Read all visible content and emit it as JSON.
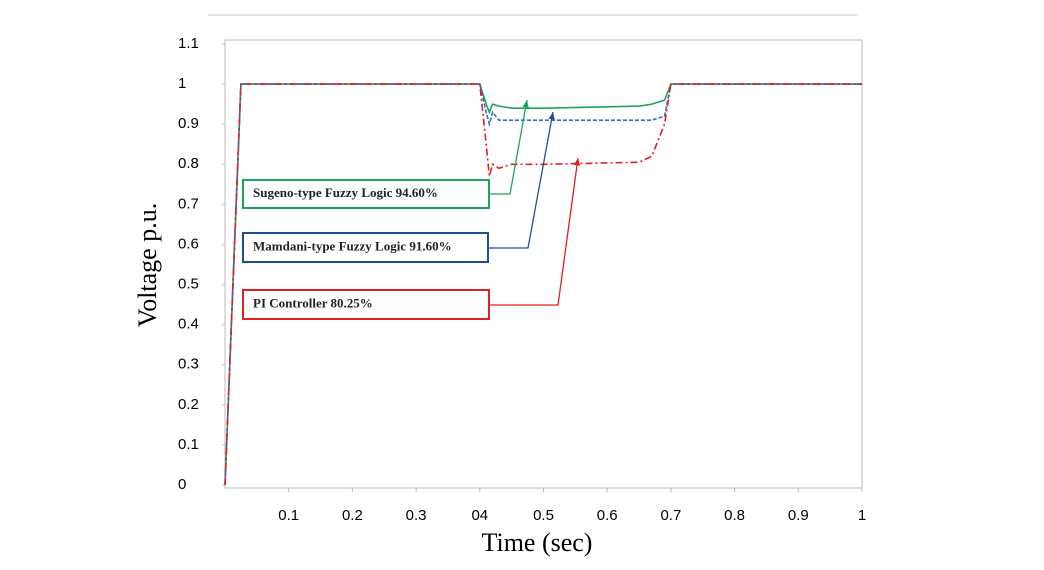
{
  "chart_data": {
    "type": "line",
    "x": [
      0,
      0.025,
      0.4,
      0.41,
      0.415,
      0.42,
      0.43,
      0.45,
      0.5,
      0.65,
      0.67,
      0.69,
      0.7,
      1
    ],
    "series": [
      {
        "color": "#1fa35a",
        "dash": "solid",
        "values": [
          0,
          1,
          1,
          0.95,
          0.93,
          0.95,
          0.945,
          0.94,
          0.94,
          0.945,
          0.95,
          0.96,
          1,
          1
        ]
      },
      {
        "color": "#2f6fc2",
        "dash": "dashed",
        "values": [
          0,
          1,
          1,
          0.93,
          0.9,
          0.93,
          0.91,
          0.91,
          0.91,
          0.91,
          0.91,
          0.92,
          1,
          1
        ]
      },
      {
        "color": "#e02020",
        "dash": "dashdot",
        "values": [
          0,
          1,
          1,
          0.85,
          0.77,
          0.8,
          0.79,
          0.8,
          0.8,
          0.805,
          0.82,
          0.9,
          1,
          1
        ]
      }
    ],
    "xlim": [
      0,
      1.0
    ],
    "ylim": [
      0,
      1.1
    ],
    "xticks": [
      0.1,
      0.2,
      0.3,
      {
        "value": 0.4,
        "label": "04"
      },
      0.5,
      0.6,
      0.7,
      0.8,
      0.9,
      1
    ],
    "yticks": [
      0,
      0.1,
      0.2,
      0.3,
      0.4,
      0.5,
      0.6,
      0.7,
      0.8,
      0.9,
      1,
      1.1
    ],
    "xlabel": "Time (sec)",
    "ylabel": "Voltage p.u.",
    "annotations": [
      {
        "text": "Sugeno-type Fuzzy Logic 94.60%",
        "color": "#1fa35a"
      },
      {
        "text": "Mamdani-type Fuzzy Logic 91.60%",
        "color": "#1f4f8f"
      },
      {
        "text": "PI Controller 80.25%",
        "color": "#e02020"
      }
    ]
  }
}
